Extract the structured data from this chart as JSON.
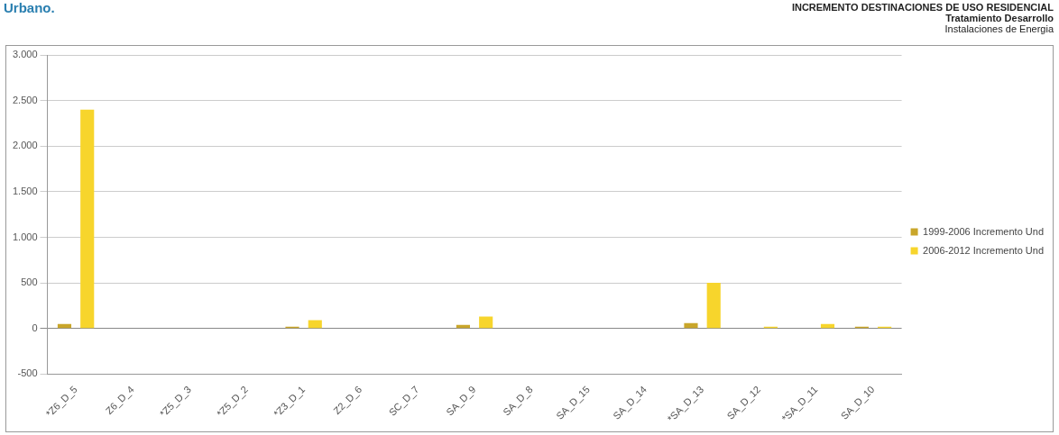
{
  "chart_data": {
    "type": "bar",
    "title": "INCREMENTO DESTINACIONES DE USO  RESIDENCIAL",
    "subtitle": "Tratamiento Desarrollo",
    "annotations": [
      "Urbano.",
      "Instalaciones  de Energia"
    ],
    "categories": [
      "*Z6_D_5",
      "Z6_D_4",
      "*Z5_D_3",
      "*Z5_D_2",
      "*Z3_D_1",
      "Z2_D_6",
      "SC_D_7",
      "SA_D_9",
      "SA_D_8",
      "SA_D_15",
      "SA_D_14",
      "*SA_D_13",
      "SA_D_12",
      "*SA_D_11",
      "SA_D_10"
    ],
    "series": [
      {
        "name": "1999-2006 Incremento Und",
        "color": "#c9a62a",
        "values": [
          50,
          0,
          0,
          0,
          20,
          0,
          0,
          40,
          0,
          0,
          0,
          60,
          0,
          0,
          20
        ]
      },
      {
        "name": "2006-2012 Incremento Und",
        "color": "#f7d52c",
        "values": [
          2400,
          0,
          0,
          0,
          90,
          0,
          0,
          130,
          0,
          0,
          0,
          500,
          20,
          50,
          20
        ]
      }
    ],
    "ylim": [
      -500,
      3000
    ],
    "yticks": [
      -500,
      0,
      {
        "value": 500,
        "label": "500"
      },
      {
        "value": 1000,
        "label": "1.000"
      },
      {
        "value": 1500,
        "label": "1.500"
      },
      {
        "value": 2000,
        "label": "2.000"
      },
      {
        "value": 2500,
        "label": "2.500"
      },
      {
        "value": 3000,
        "label": "3.000"
      }
    ],
    "grid": "y",
    "legend": "right"
  }
}
